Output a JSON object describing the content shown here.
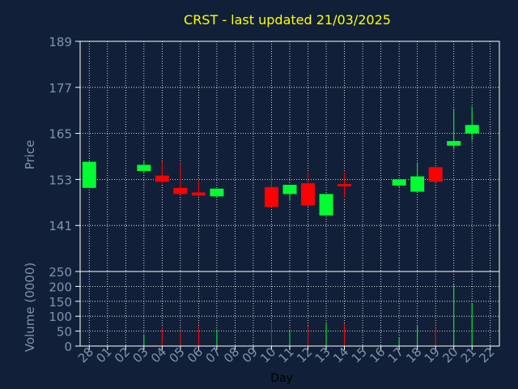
{
  "colors": {
    "background": "#112038",
    "plot_background": "#112038",
    "frame": "#ffffff",
    "grid": "#ffffff",
    "title": "#ffff00",
    "axis_text": "#7f93b1",
    "up": "#00ff30",
    "down": "#ff0000"
  },
  "chart_data": [
    {
      "type": "candlestick",
      "title": "CRST - last updated 21/03/2025",
      "ylabel": "Price",
      "ylim": [
        129,
        189
      ],
      "yticks": [
        141,
        153,
        165,
        177,
        189
      ],
      "grid": true,
      "categories": [
        "28",
        "01",
        "02",
        "03",
        "04",
        "05",
        "06",
        "07",
        "08",
        "09",
        "10",
        "11",
        "12",
        "13",
        "14",
        "15",
        "16",
        "17",
        "18",
        "19",
        "20",
        "21",
        "22"
      ],
      "candles": [
        {
          "day": "28",
          "open": 150.8,
          "close": 157.6,
          "high": 157.6,
          "low": 150.8
        },
        {
          "day": "03",
          "open": 155.2,
          "close": 156.8,
          "high": 158.0,
          "low": 154.8
        },
        {
          "day": "04",
          "open": 154.0,
          "close": 152.4,
          "high": 157.8,
          "low": 152.0
        },
        {
          "day": "05",
          "open": 150.8,
          "close": 149.2,
          "high": 157.2,
          "low": 149.0
        },
        {
          "day": "06",
          "open": 149.6,
          "close": 148.8,
          "high": 152.8,
          "low": 148.6
        },
        {
          "day": "07",
          "open": 148.6,
          "close": 150.6,
          "high": 150.6,
          "low": 148.4
        },
        {
          "day": "10",
          "open": 151.0,
          "close": 145.8,
          "high": 154.8,
          "low": 145.8
        },
        {
          "day": "11",
          "open": 149.2,
          "close": 151.6,
          "high": 151.6,
          "low": 147.4
        },
        {
          "day": "12",
          "open": 152.0,
          "close": 146.2,
          "high": 154.8,
          "low": 146.0
        },
        {
          "day": "13",
          "open": 143.6,
          "close": 149.2,
          "high": 149.2,
          "low": 143.6
        },
        {
          "day": "14",
          "open": 151.8,
          "close": 151.2,
          "high": 154.8,
          "low": 148.2
        },
        {
          "day": "17",
          "open": 151.4,
          "close": 153.0,
          "high": 153.0,
          "low": 151.0
        },
        {
          "day": "18",
          "open": 149.8,
          "close": 153.8,
          "high": 157.4,
          "low": 149.6
        },
        {
          "day": "19",
          "open": 156.2,
          "close": 152.4,
          "high": 156.2,
          "low": 152.4
        },
        {
          "day": "20",
          "open": 161.8,
          "close": 163.0,
          "high": 171.4,
          "low": 160.8
        },
        {
          "day": "21",
          "open": 165.0,
          "close": 167.2,
          "high": 172.0,
          "low": 163.2
        }
      ]
    },
    {
      "type": "bar",
      "ylabel": "Volume (0000)",
      "xlabel": "Day",
      "ylim": [
        0,
        250
      ],
      "yticks": [
        0,
        50,
        100,
        150,
        200,
        250
      ],
      "grid": true,
      "categories": [
        "28",
        "01",
        "02",
        "03",
        "04",
        "05",
        "06",
        "07",
        "08",
        "09",
        "10",
        "11",
        "12",
        "13",
        "14",
        "15",
        "16",
        "17",
        "18",
        "19",
        "20",
        "21",
        "22"
      ],
      "bars": [
        {
          "day": "03",
          "value": 35,
          "direction": "up"
        },
        {
          "day": "04",
          "value": 62,
          "direction": "down"
        },
        {
          "day": "05",
          "value": 50,
          "direction": "down"
        },
        {
          "day": "06",
          "value": 65,
          "direction": "down"
        },
        {
          "day": "07",
          "value": 56,
          "direction": "up"
        },
        {
          "day": "10",
          "value": 82,
          "direction": "down"
        },
        {
          "day": "11",
          "value": 50,
          "direction": "up"
        },
        {
          "day": "12",
          "value": 68,
          "direction": "down"
        },
        {
          "day": "13",
          "value": 75,
          "direction": "up"
        },
        {
          "day": "14",
          "value": 75,
          "direction": "down"
        },
        {
          "day": "17",
          "value": 28,
          "direction": "up"
        },
        {
          "day": "18",
          "value": 67,
          "direction": "up"
        },
        {
          "day": "19",
          "value": 60,
          "direction": "down"
        },
        {
          "day": "20",
          "value": 207,
          "direction": "up"
        },
        {
          "day": "21",
          "value": 143,
          "direction": "up"
        }
      ]
    }
  ]
}
